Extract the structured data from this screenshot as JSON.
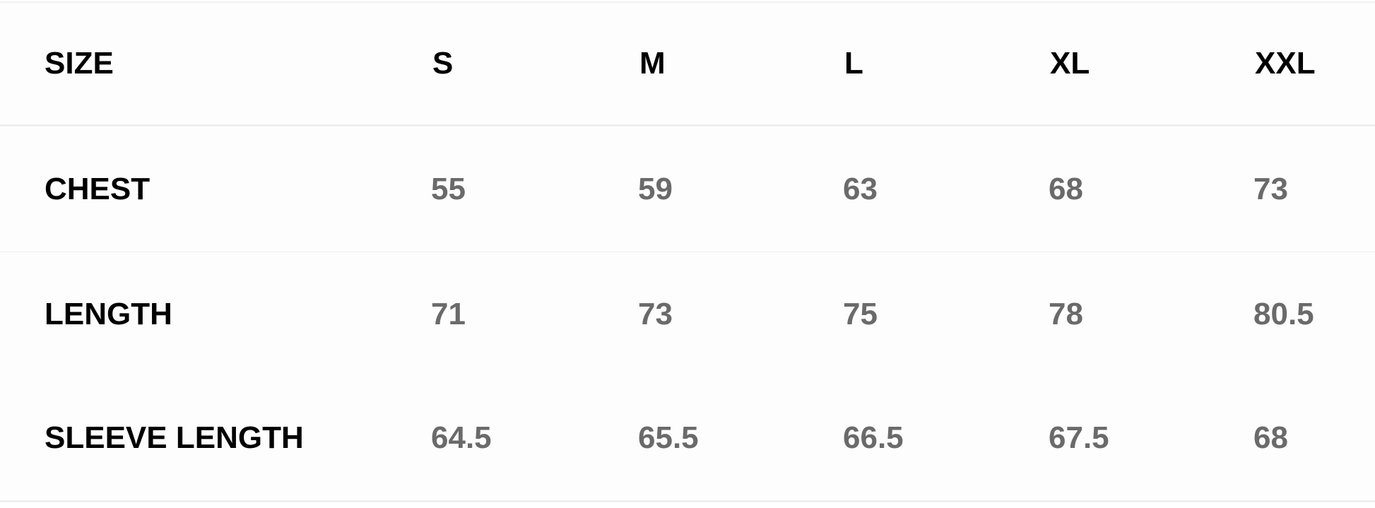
{
  "table": {
    "header": {
      "label": "SIZE",
      "sizes": [
        "S",
        "M",
        "L",
        "XL",
        "XXL"
      ]
    },
    "rows": [
      {
        "label": "CHEST",
        "values": [
          "55",
          "59",
          "63",
          "68",
          "73"
        ]
      },
      {
        "label": "LENGTH",
        "values": [
          "71",
          "73",
          "75",
          "78",
          "80.5"
        ]
      },
      {
        "label": "SLEEVE LENGTH",
        "values": [
          "64.5",
          "65.5",
          "66.5",
          "67.5",
          "68"
        ]
      }
    ],
    "colors": {
      "label": "#000000",
      "value": "#6a6a6a"
    }
  }
}
